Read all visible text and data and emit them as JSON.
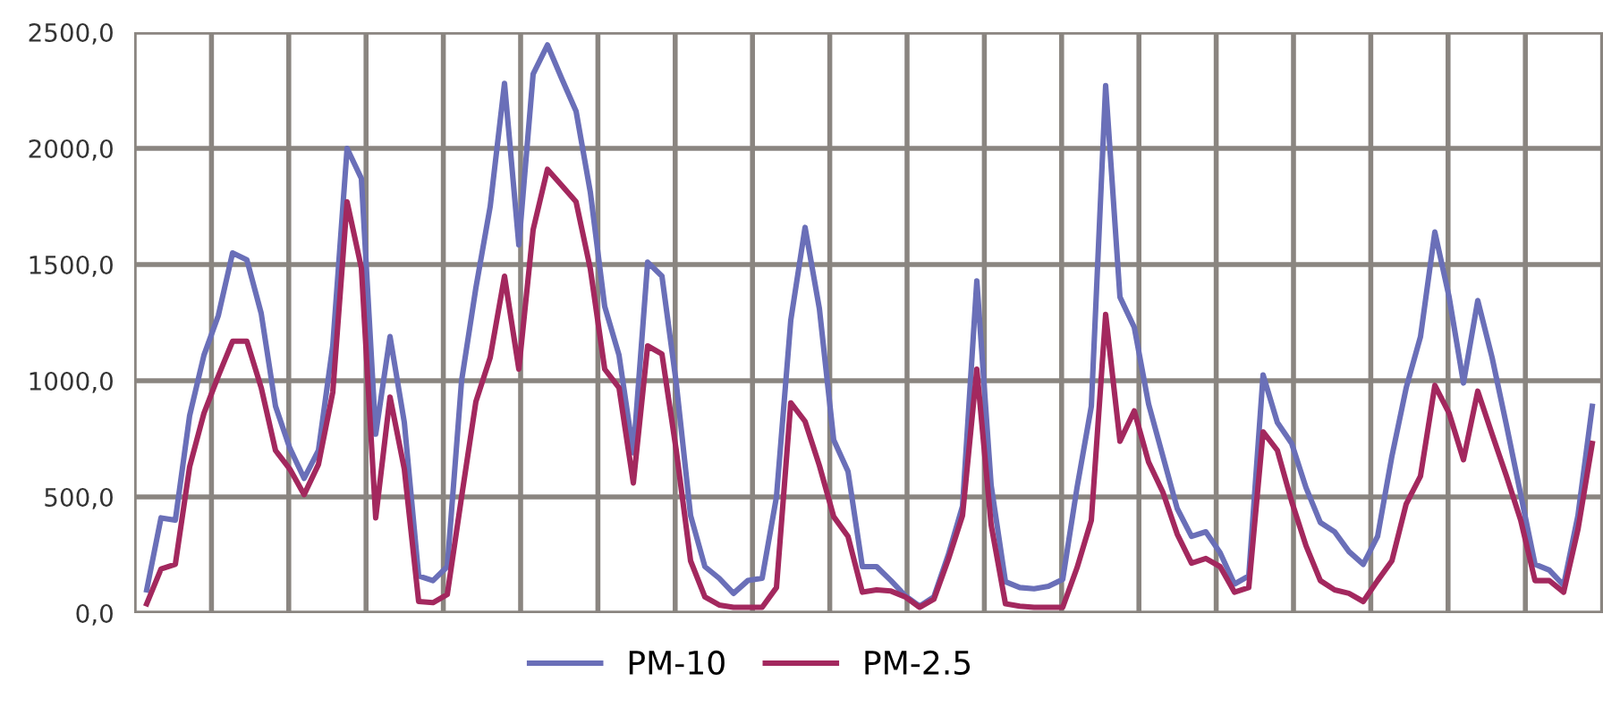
{
  "chart_data": {
    "type": "line",
    "categories": [
      null,
      null,
      null,
      null,
      null,
      null,
      null,
      null,
      null,
      null,
      null,
      null,
      null,
      null,
      null,
      null,
      null,
      null,
      null,
      null,
      null,
      null,
      null,
      null,
      null,
      null,
      null,
      null,
      null,
      null,
      null,
      null,
      null,
      null,
      null,
      null,
      null,
      null,
      null,
      null,
      null,
      null,
      null,
      null,
      null,
      null,
      null,
      null,
      null,
      null,
      null,
      null,
      null,
      null,
      null,
      null,
      null,
      null,
      null,
      null,
      null,
      null,
      null,
      null,
      null,
      null,
      null,
      null,
      null,
      null,
      null,
      null,
      null,
      null,
      null,
      null,
      null,
      null,
      null,
      null,
      null,
      null,
      null,
      null,
      null,
      null,
      null,
      null,
      null,
      null,
      null,
      null,
      null,
      null,
      null,
      null,
      null,
      null,
      null,
      null,
      null,
      null
    ],
    "series": [
      {
        "name": "PM-10",
        "color": "#6a6fb8",
        "values": [
          100,
          410,
          400,
          850,
          1110,
          1280,
          1550,
          1520,
          1290,
          890,
          710,
          580,
          700,
          1150,
          2000,
          1870,
          770,
          1190,
          820,
          160,
          140,
          200,
          1000,
          1400,
          1750,
          2280,
          1585,
          2320,
          2445,
          2300,
          2160,
          1810,
          1320,
          1110,
          690,
          1510,
          1450,
          990,
          420,
          200,
          150,
          85,
          140,
          150,
          500,
          1260,
          1660,
          1310,
          745,
          610,
          200,
          200,
          140,
          75,
          30,
          70,
          250,
          460,
          1430,
          550,
          135,
          110,
          105,
          115,
          145,
          540,
          890,
          2270,
          1360,
          1230,
          900,
          675,
          450,
          330,
          350,
          260,
          125,
          160,
          1025,
          820,
          730,
          540,
          390,
          350,
          265,
          210,
          330,
          675,
          970,
          1190,
          1640,
          1360,
          990,
          1345,
          1100,
          810,
          510,
          210,
          185,
          120,
          420,
          890
        ]
      },
      {
        "name": "PM-2.5",
        "color": "#a3285e",
        "values": [
          40,
          190,
          210,
          630,
          860,
          1020,
          1170,
          1170,
          970,
          700,
          620,
          510,
          640,
          950,
          1770,
          1485,
          410,
          930,
          620,
          50,
          45,
          80,
          500,
          910,
          1100,
          1450,
          1050,
          1650,
          1910,
          1840,
          1770,
          1480,
          1050,
          970,
          560,
          1150,
          1115,
          700,
          225,
          70,
          35,
          25,
          25,
          25,
          110,
          905,
          825,
          635,
          415,
          330,
          90,
          100,
          95,
          70,
          25,
          60,
          230,
          420,
          1050,
          380,
          40,
          30,
          25,
          25,
          25,
          195,
          400,
          1285,
          740,
          870,
          650,
          520,
          340,
          215,
          235,
          200,
          90,
          110,
          780,
          700,
          480,
          290,
          140,
          100,
          85,
          50,
          140,
          225,
          470,
          590,
          980,
          860,
          660,
          955,
          770,
          590,
          400,
          140,
          140,
          90,
          360,
          730
        ]
      }
    ],
    "ylim": [
      0,
      2500
    ],
    "yticks": [
      {
        "value": 0,
        "label": "0,0"
      },
      {
        "value": 500,
        "label": "500,0"
      },
      {
        "value": 1000,
        "label": "1000,0"
      },
      {
        "value": 1500,
        "label": "1500,0"
      },
      {
        "value": 2000,
        "label": "2000,0"
      },
      {
        "value": 2500,
        "label": "2500,0"
      }
    ],
    "grid": true,
    "legend": "bottom",
    "marker": "none",
    "line_style": "solid"
  }
}
